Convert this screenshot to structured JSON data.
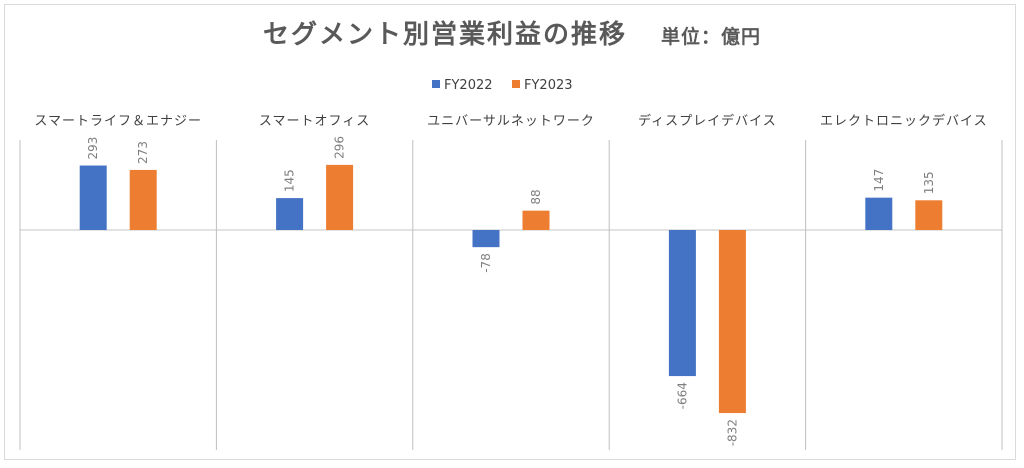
{
  "title": "セグメント別営業利益の推移",
  "unit": "単位：億円",
  "colors": {
    "FY2022": "#4472c4",
    "FY2023": "#ed7d31",
    "grid": "#d9d9d9",
    "axis": "#bfbfbf"
  },
  "chart_data": {
    "type": "bar",
    "title": "セグメント別営業利益の推移",
    "unit": "単位：億円",
    "categories": [
      "スマートライフ＆エナジー",
      "スマートオフィス",
      "ユニバーサルネットワーク",
      "ディスプレイデバイス",
      "エレクトロニックデバイス"
    ],
    "series": [
      {
        "name": "FY2022",
        "values": [
          293,
          145,
          -78,
          -664,
          147
        ]
      },
      {
        "name": "FY2023",
        "values": [
          273,
          296,
          88,
          -832,
          135
        ]
      }
    ],
    "ylim": [
      -1000,
      400
    ],
    "grid": false,
    "legend": "top-center",
    "category_labels_position": "top"
  }
}
